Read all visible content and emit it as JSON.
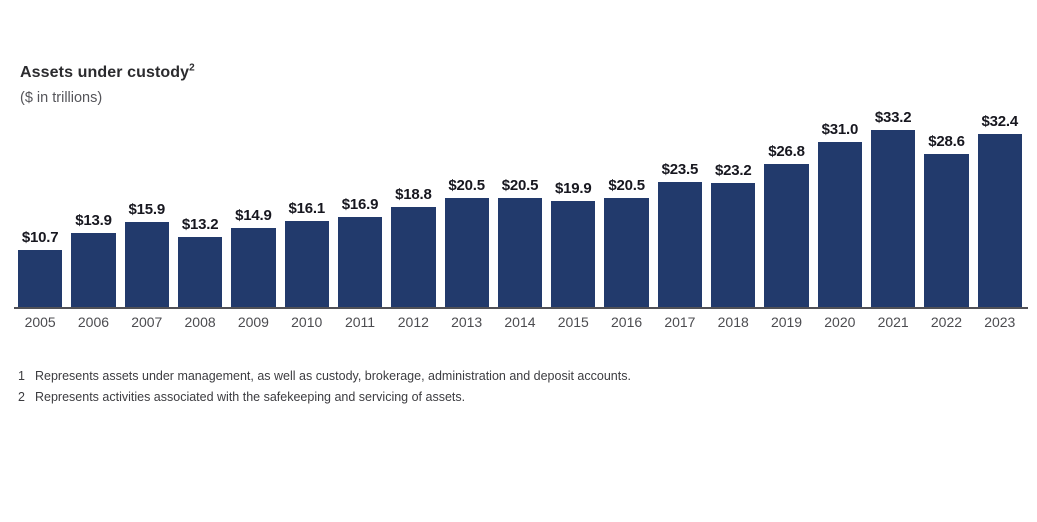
{
  "header": {
    "title": "Assets under custody",
    "title_superscript": "2",
    "subtitle": "($ in trillions)"
  },
  "chart_data": {
    "type": "bar",
    "title": "Assets under custody²",
    "subtitle": "($ in trillions)",
    "categories": [
      "2005",
      "2006",
      "2007",
      "2008",
      "2009",
      "2010",
      "2011",
      "2012",
      "2013",
      "2014",
      "2015",
      "2016",
      "2017",
      "2018",
      "2019",
      "2020",
      "2021",
      "2022",
      "2023"
    ],
    "values": [
      10.7,
      13.9,
      15.9,
      13.2,
      14.9,
      16.1,
      16.9,
      18.8,
      20.5,
      20.5,
      19.9,
      20.5,
      23.5,
      23.2,
      26.8,
      31.0,
      33.2,
      28.6,
      32.4
    ],
    "value_prefix": "$",
    "value_decimals": 1,
    "value_labels_position": "above bars",
    "bar_color": "#223a6c",
    "value_label_color": "#17171f",
    "axis_line_color": "#515156",
    "tick_label_color": "#4c4c50",
    "ylim": [
      0,
      36
    ],
    "grid": false,
    "legend": "none",
    "y_axis_visible": false
  },
  "footnotes": [
    {
      "number": "1",
      "text": "Represents assets under management, as well as custody, brokerage, administration and deposit accounts."
    },
    {
      "number": "2",
      "text": "Represents activities associated with the safekeeping and servicing of assets."
    }
  ]
}
